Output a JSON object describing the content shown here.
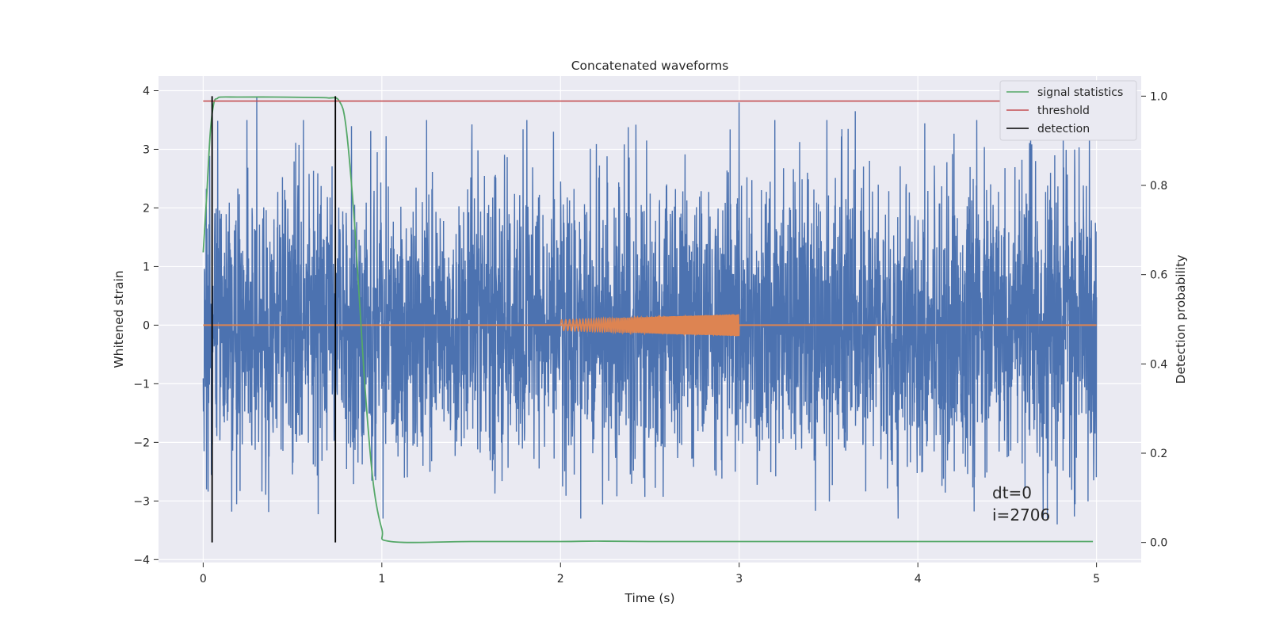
{
  "chart_data": {
    "type": "line",
    "title": "Concatenated waveforms",
    "xlabel": "Time (s)",
    "ylabel": "Whitened strain",
    "y2label": "Detection probability",
    "xlim": [
      -0.25,
      5.25
    ],
    "ylim": [
      -4.05,
      4.25
    ],
    "y2lim": [
      -0.045,
      1.045
    ],
    "xticks": [
      0,
      1,
      2,
      3,
      4,
      5
    ],
    "yticks": [
      -4,
      -3,
      -2,
      -1,
      0,
      1,
      2,
      3,
      4
    ],
    "y2ticks": [
      0.0,
      0.2,
      0.4,
      0.6,
      0.8,
      1.0
    ],
    "xtick_labels": [
      "0",
      "1",
      "2",
      "3",
      "4",
      "5"
    ],
    "ytick_labels": [
      "−4",
      "−3",
      "−2",
      "−1",
      "0",
      "1",
      "2",
      "3",
      "4"
    ],
    "y2tick_labels": [
      "0.0",
      "0.2",
      "0.4",
      "0.6",
      "0.8",
      "1.0"
    ],
    "grid": true,
    "legend_position": "top-right",
    "legend": [
      "signal statistics",
      "threshold",
      "detection"
    ],
    "series": [
      {
        "role": "whitened-strain-noise",
        "axis": "left",
        "color": "#4c72b0",
        "x_range": [
          0,
          5
        ],
        "typical_amplitude": 1.2,
        "notable_peaks": [
          {
            "x": 0.3,
            "y": 3.9
          },
          {
            "x": 3.0,
            "y": 3.8
          },
          {
            "x": 3.0,
            "y": -3.65
          },
          {
            "x": 3.65,
            "y": 3.65
          },
          {
            "x": 4.78,
            "y": -3.4
          }
        ]
      },
      {
        "role": "injected-chirp-waveform",
        "axis": "left",
        "color": "#dd8452",
        "x_range": [
          2.0,
          3.0
        ],
        "amplitude_start": 0.09,
        "amplitude_end": 0.19
      },
      {
        "name": "signal statistics",
        "axis": "right",
        "color": "#55a868",
        "x": [
          0.0,
          0.02,
          0.04,
          0.06,
          0.08,
          0.1,
          0.2,
          0.4,
          0.6,
          0.7,
          0.76,
          0.8,
          0.85,
          0.9,
          0.95,
          1.0,
          1.05,
          1.5,
          2.0,
          2.2,
          2.5,
          3.0,
          3.5,
          4.0,
          4.5,
          4.98
        ],
        "y": [
          0.65,
          0.78,
          0.92,
          0.985,
          0.995,
          0.998,
          0.998,
          0.998,
          0.997,
          0.996,
          0.99,
          0.93,
          0.7,
          0.38,
          0.14,
          0.03,
          0.002,
          0.002,
          0.002,
          0.003,
          0.002,
          0.002,
          0.002,
          0.002,
          0.002,
          0.002
        ]
      },
      {
        "name": "threshold",
        "axis": "right",
        "color": "#c44e52",
        "x": [
          0,
          5
        ],
        "y": [
          0.989,
          0.989
        ]
      },
      {
        "name": "detection",
        "axis": "right",
        "color": "#000000",
        "x": [
          0.05,
          0.74
        ],
        "y_range": [
          0,
          1
        ]
      }
    ],
    "annotations": [
      "dt=0",
      "i=2706"
    ]
  }
}
